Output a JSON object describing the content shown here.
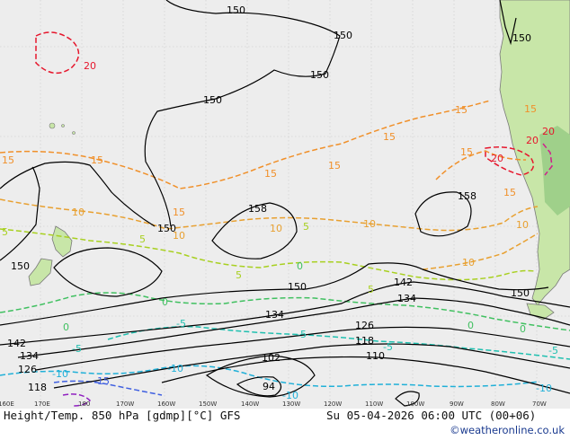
{
  "header": {
    "product_title": "Height/Temp. 850 hPa [gdmp][°C] GFS",
    "valid_time": "Su 05-04-2026 06:00 UTC (00+06)",
    "credit": "©weatheronline.co.uk"
  },
  "colors": {
    "ocean": "#ededed",
    "land": "#c8e6a8",
    "land_dark": "#9fd08a",
    "coast": "#7a7a7a",
    "height_contour": "#000000",
    "height_contour_150": "#000000",
    "temp_20": "#e6162c",
    "temp_15": "#f0902a",
    "temp_10": "#e8a030",
    "temp_5": "#a8d020",
    "temp_0": "#40c060",
    "temp_minus5": "#20c0b0",
    "temp_minus10": "#20b0d8",
    "temp_minus15": "#4060e0",
    "temp_minus20": "#9020c0",
    "temp_25": "#d0208c"
  },
  "longitude_ticks": [
    "160E",
    "170E",
    "180",
    "170W",
    "160W",
    "150W",
    "140W",
    "130W",
    "120W",
    "110W",
    "100W",
    "90W",
    "80W",
    "70W"
  ],
  "height_labels": [
    "150",
    "150",
    "150",
    "150",
    "150",
    "150",
    "150",
    "150",
    "158",
    "158",
    "150",
    "142",
    "134",
    "134",
    "126",
    "118",
    "110",
    "102",
    "94",
    "142",
    "134",
    "126",
    "118"
  ],
  "temp_labels": [
    "20",
    "20",
    "15",
    "15",
    "15",
    "15",
    "15",
    "15",
    "15",
    "15",
    "15",
    "20",
    "20",
    "15",
    "10",
    "10",
    "10",
    "10",
    "10",
    "10",
    "5",
    "5",
    "5",
    "5",
    "5",
    "0",
    "0",
    "0",
    "0",
    "-5",
    "-5",
    "-5",
    "-5",
    "-10",
    "-10",
    "-10",
    "-10",
    "-15",
    "0",
    "-5"
  ]
}
